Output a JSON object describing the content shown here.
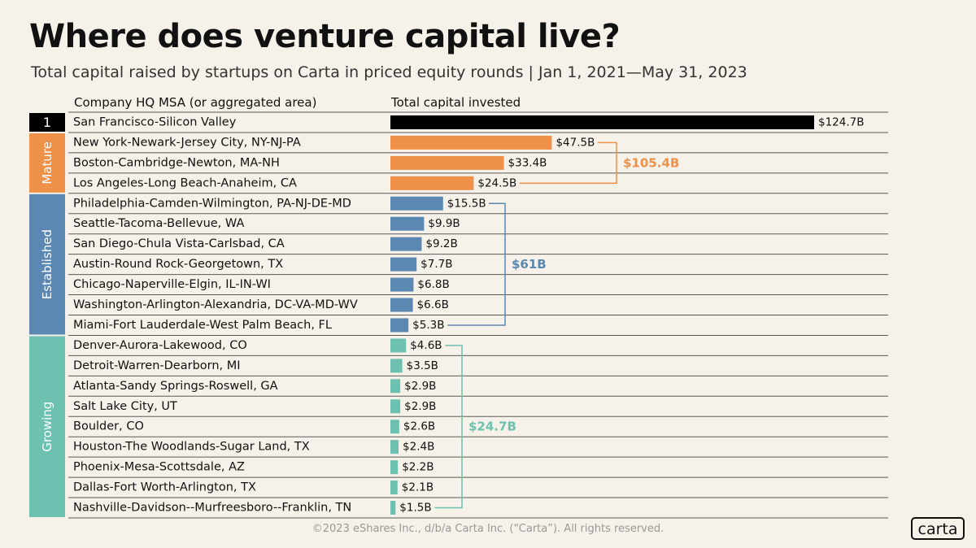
{
  "title": "Where does venture capital live?",
  "subtitle": "Total capital raised by startups on Carta in priced equity rounds  |  Jan 1, 2021—May 31, 2023",
  "headers": {
    "msa": "Company HQ MSA (or aggregated area)",
    "capital": "Total capital invested"
  },
  "footer": "©2023 eShares Inc., d/b/a Carta Inc. (“Carta”). All rights reserved.",
  "logo": "carta",
  "colors": {
    "top": "#000000",
    "mature": "#ef9149",
    "established": "#5a88b3",
    "growing": "#6dc1b0"
  },
  "chart_data": {
    "type": "bar",
    "orientation": "horizontal",
    "unit": "$B",
    "groups": [
      {
        "label": "1",
        "color_key": "top",
        "total": null
      },
      {
        "label": "Mature",
        "color_key": "mature",
        "total": "$105.4B"
      },
      {
        "label": "Established",
        "color_key": "established",
        "total": "$61B"
      },
      {
        "label": "Growing",
        "color_key": "growing",
        "total": "$24.7B"
      }
    ],
    "rows": [
      {
        "name": "San Francisco-Silicon Valley",
        "value": 124.7,
        "label": "$124.7B",
        "group": 0
      },
      {
        "name": "New York-Newark-Jersey City, NY-NJ-PA",
        "value": 47.5,
        "label": "$47.5B",
        "group": 1
      },
      {
        "name": "Boston-Cambridge-Newton, MA-NH",
        "value": 33.4,
        "label": "$33.4B",
        "group": 1
      },
      {
        "name": "Los Angeles-Long Beach-Anaheim, CA",
        "value": 24.5,
        "label": "$24.5B",
        "group": 1
      },
      {
        "name": "Philadelphia-Camden-Wilmington, PA-NJ-DE-MD",
        "value": 15.5,
        "label": "$15.5B",
        "group": 2
      },
      {
        "name": "Seattle-Tacoma-Bellevue, WA",
        "value": 9.9,
        "label": "$9.9B",
        "group": 2
      },
      {
        "name": "San Diego-Chula Vista-Carlsbad, CA",
        "value": 9.2,
        "label": "$9.2B",
        "group": 2
      },
      {
        "name": "Austin-Round Rock-Georgetown, TX",
        "value": 7.7,
        "label": "$7.7B",
        "group": 2
      },
      {
        "name": "Chicago-Naperville-Elgin, IL-IN-WI",
        "value": 6.8,
        "label": "$6.8B",
        "group": 2
      },
      {
        "name": "Washington-Arlington-Alexandria, DC-VA-MD-WV",
        "value": 6.6,
        "label": "$6.6B",
        "group": 2
      },
      {
        "name": "Miami-Fort Lauderdale-West Palm Beach, FL",
        "value": 5.3,
        "label": "$5.3B",
        "group": 2
      },
      {
        "name": "Denver-Aurora-Lakewood, CO",
        "value": 4.6,
        "label": "$4.6B",
        "group": 3
      },
      {
        "name": "Detroit-Warren-Dearborn, MI",
        "value": 3.5,
        "label": "$3.5B",
        "group": 3
      },
      {
        "name": "Atlanta-Sandy Springs-Roswell, GA",
        "value": 2.9,
        "label": "$2.9B",
        "group": 3
      },
      {
        "name": "Salt Lake City, UT",
        "value": 2.9,
        "label": "$2.9B",
        "group": 3
      },
      {
        "name": "Boulder, CO",
        "value": 2.6,
        "label": "$2.6B",
        "group": 3
      },
      {
        "name": "Houston-The Woodlands-Sugar Land, TX",
        "value": 2.4,
        "label": "$2.4B",
        "group": 3
      },
      {
        "name": "Phoenix-Mesa-Scottsdale, AZ",
        "value": 2.2,
        "label": "$2.2B",
        "group": 3
      },
      {
        "name": "Dallas-Fort Worth-Arlington, TX",
        "value": 2.1,
        "label": "$2.1B",
        "group": 3
      },
      {
        "name": "Nashville-Davidson--Murfreesboro--Franklin, TN",
        "value": 1.5,
        "label": "$1.5B",
        "group": 3
      }
    ]
  }
}
